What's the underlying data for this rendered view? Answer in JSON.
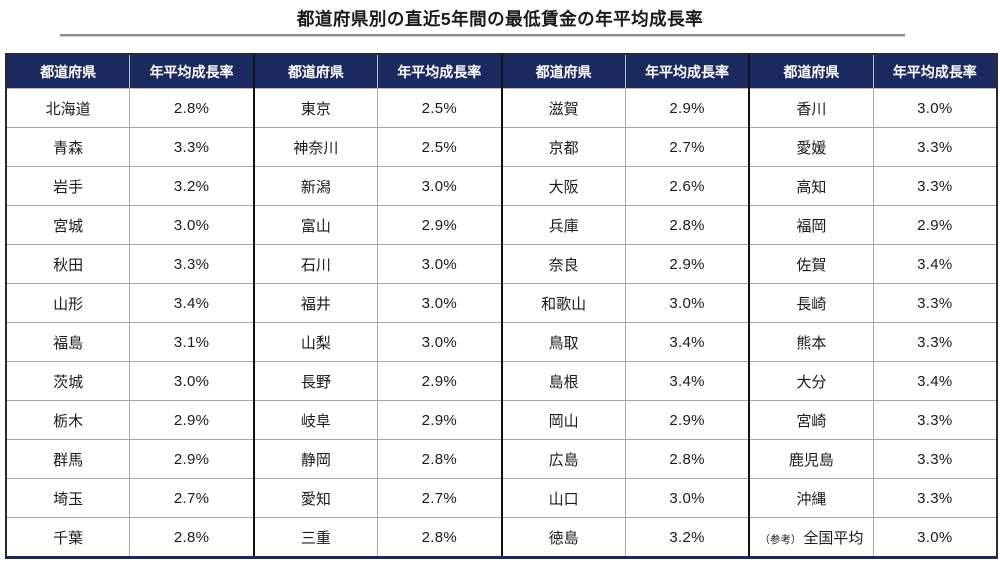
{
  "page": {
    "title": "都道府県別の直近5年間の最低賃金の年平均成長率"
  },
  "colors": {
    "header_bg": "#1b2a5e",
    "header_text": "#ffffff",
    "grid_line": "#a6a6a6",
    "pair_divider": "#111111",
    "outer_border": "#2a2a2a",
    "bottom_border": "#1e2a5c",
    "title_rule": "#8c8c8c"
  },
  "table": {
    "header": {
      "prefecture_label": "都道府県",
      "rate_label": "年平均成長率"
    },
    "groups": [
      {
        "rows": [
          {
            "prefecture": "北海道",
            "rate": "2.8%"
          },
          {
            "prefecture": "青森",
            "rate": "3.3%"
          },
          {
            "prefecture": "岩手",
            "rate": "3.2%"
          },
          {
            "prefecture": "宮城",
            "rate": "3.0%"
          },
          {
            "prefecture": "秋田",
            "rate": "3.3%"
          },
          {
            "prefecture": "山形",
            "rate": "3.4%"
          },
          {
            "prefecture": "福島",
            "rate": "3.1%"
          },
          {
            "prefecture": "茨城",
            "rate": "3.0%"
          },
          {
            "prefecture": "栃木",
            "rate": "2.9%"
          },
          {
            "prefecture": "群馬",
            "rate": "2.9%"
          },
          {
            "prefecture": "埼玉",
            "rate": "2.7%"
          },
          {
            "prefecture": "千葉",
            "rate": "2.8%"
          }
        ]
      },
      {
        "rows": [
          {
            "prefecture": "東京",
            "rate": "2.5%"
          },
          {
            "prefecture": "神奈川",
            "rate": "2.5%"
          },
          {
            "prefecture": "新潟",
            "rate": "3.0%"
          },
          {
            "prefecture": "富山",
            "rate": "2.9%"
          },
          {
            "prefecture": "石川",
            "rate": "3.0%"
          },
          {
            "prefecture": "福井",
            "rate": "3.0%"
          },
          {
            "prefecture": "山梨",
            "rate": "3.0%"
          },
          {
            "prefecture": "長野",
            "rate": "2.9%"
          },
          {
            "prefecture": "岐阜",
            "rate": "2.9%"
          },
          {
            "prefecture": "静岡",
            "rate": "2.8%"
          },
          {
            "prefecture": "愛知",
            "rate": "2.7%"
          },
          {
            "prefecture": "三重",
            "rate": "2.8%"
          }
        ]
      },
      {
        "rows": [
          {
            "prefecture": "滋賀",
            "rate": "2.9%"
          },
          {
            "prefecture": "京都",
            "rate": "2.7%"
          },
          {
            "prefecture": "大阪",
            "rate": "2.6%"
          },
          {
            "prefecture": "兵庫",
            "rate": "2.8%"
          },
          {
            "prefecture": "奈良",
            "rate": "2.9%"
          },
          {
            "prefecture": "和歌山",
            "rate": "3.0%"
          },
          {
            "prefecture": "鳥取",
            "rate": "3.4%"
          },
          {
            "prefecture": "島根",
            "rate": "3.4%"
          },
          {
            "prefecture": "岡山",
            "rate": "2.9%"
          },
          {
            "prefecture": "広島",
            "rate": "2.8%"
          },
          {
            "prefecture": "山口",
            "rate": "3.0%"
          },
          {
            "prefecture": "徳島",
            "rate": "3.2%"
          }
        ]
      },
      {
        "rows": [
          {
            "prefecture": "香川",
            "rate": "3.0%"
          },
          {
            "prefecture": "愛媛",
            "rate": "3.3%"
          },
          {
            "prefecture": "高知",
            "rate": "3.3%"
          },
          {
            "prefecture": "福岡",
            "rate": "2.9%"
          },
          {
            "prefecture": "佐賀",
            "rate": "3.4%"
          },
          {
            "prefecture": "長崎",
            "rate": "3.3%"
          },
          {
            "prefecture": "熊本",
            "rate": "3.3%"
          },
          {
            "prefecture": "大分",
            "rate": "3.4%"
          },
          {
            "prefecture": "宮崎",
            "rate": "3.3%"
          },
          {
            "prefecture": "鹿児島",
            "rate": "3.3%"
          },
          {
            "prefecture": "沖縄",
            "rate": "3.3%"
          },
          {
            "prefecture": "全国平均",
            "prefix": "（参考）",
            "rate": "3.0%"
          }
        ]
      }
    ]
  }
}
